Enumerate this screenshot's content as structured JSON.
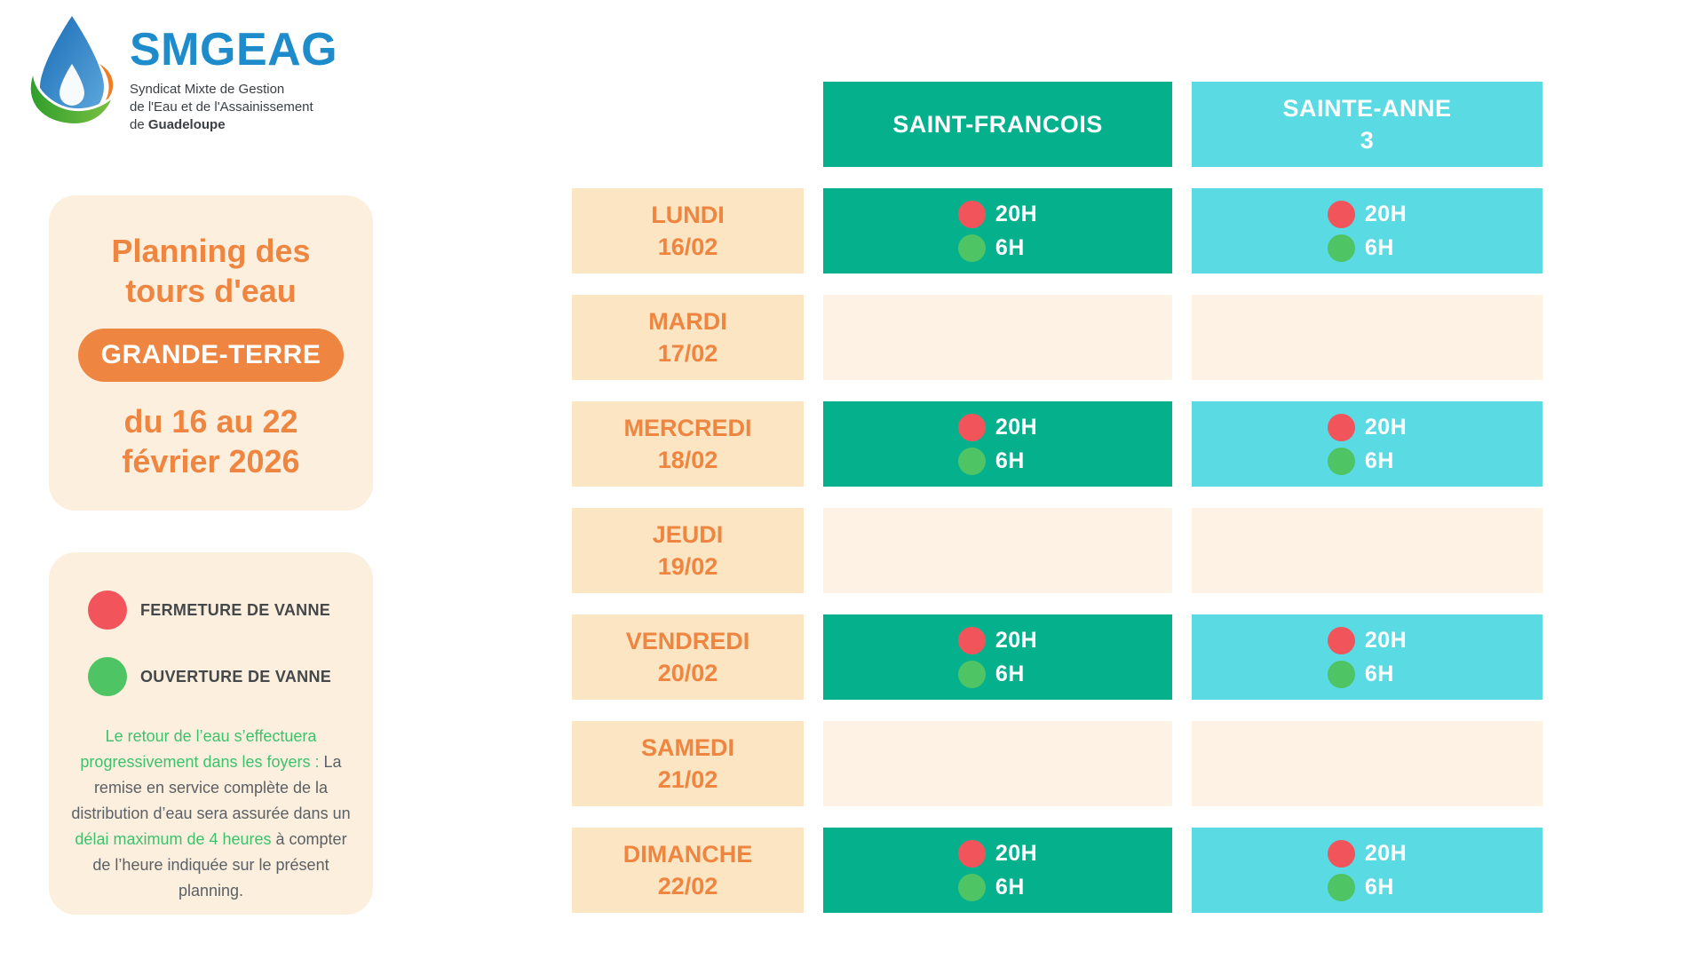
{
  "logo": {
    "brand": "SMGEAG",
    "tagline_line1": "Syndicat Mixte de Gestion",
    "tagline_line2": "de l'Eau et de l'Assainissement",
    "tagline_line3_normal": "de ",
    "tagline_line3_bold": "Guadeloupe"
  },
  "panel": {
    "title_line1": "Planning des",
    "title_line2": "tours d'eau",
    "region_badge": "GRANDE-TERRE",
    "period_line1": "du 16 au 22",
    "period_line2": "février 2026"
  },
  "legend": {
    "items": [
      {
        "type": "fermeture",
        "label": "FERMETURE DE VANNE",
        "color": "#F2545C"
      },
      {
        "type": "ouverture",
        "label": "OUVERTURE DE VANNE",
        "color": "#4EC464"
      }
    ],
    "note_segments": [
      {
        "text": "Le retour de l’eau s’effectuera progressivement dans les foyers :",
        "color": "green"
      },
      {
        "text": " La remise en service complète de la distribution d’eau sera assurée dans un ",
        "color": "dark"
      },
      {
        "text": "délai maximum de 4 heures",
        "color": "green"
      },
      {
        "text": " à compter de l’heure indiquée sur le présent planning.",
        "color": "dark"
      }
    ]
  },
  "schedule": {
    "columns": [
      {
        "id": "saint-francois",
        "label_lines": [
          "SAINT-FRANCOIS"
        ],
        "color": "#04B18C"
      },
      {
        "id": "sainte-anne-3",
        "label_lines": [
          "SAINTE-ANNE",
          "3"
        ],
        "color": "#5ADAE3"
      }
    ],
    "event_colors": {
      "fermeture": "#F2545C",
      "ouverture": "#4EC464"
    },
    "rows": [
      {
        "day": "LUNDI",
        "date": "16/02",
        "events": [
          {
            "type": "fermeture",
            "time": "20H"
          },
          {
            "type": "ouverture",
            "time": "6H"
          }
        ]
      },
      {
        "day": "MARDI",
        "date": "17/02",
        "events": []
      },
      {
        "day": "MERCREDI",
        "date": "18/02",
        "events": [
          {
            "type": "fermeture",
            "time": "20H"
          },
          {
            "type": "ouverture",
            "time": "6H"
          }
        ]
      },
      {
        "day": "JEUDI",
        "date": "19/02",
        "events": []
      },
      {
        "day": "VENDREDI",
        "date": "20/02",
        "events": [
          {
            "type": "fermeture",
            "time": "20H"
          },
          {
            "type": "ouverture",
            "time": "6H"
          }
        ]
      },
      {
        "day": "SAMEDI",
        "date": "21/02",
        "events": []
      },
      {
        "day": "DIMANCHE",
        "date": "22/02",
        "events": [
          {
            "type": "fermeture",
            "time": "20H"
          },
          {
            "type": "ouverture",
            "time": "6H"
          }
        ]
      }
    ]
  },
  "colors": {
    "teal": "#04B18C",
    "cyan": "#5ADAE3",
    "orange": "#EE8540",
    "day_label_bg": "#FCE5C2",
    "empty_cell_bg": "#FDF2E3",
    "panel_bg": "#FCEFDE",
    "red_dot": "#F2545C",
    "green_dot": "#4EC464",
    "note_green": "#3EC06D",
    "text_dark": "#44484B",
    "logo_blue": "#1E8BCB"
  }
}
